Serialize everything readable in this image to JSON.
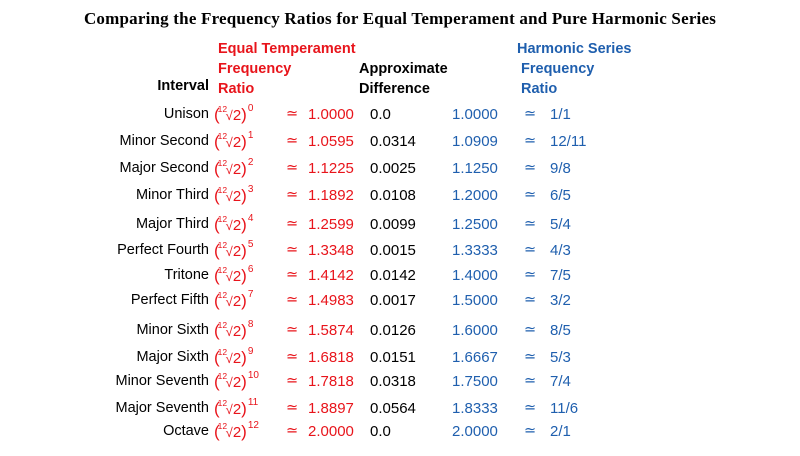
{
  "title": "Comparing the Frequency Ratios for Equal Temperament and Pure Harmonic Series",
  "headers": {
    "interval": "Interval",
    "et": [
      "Equal Temperament",
      "Frequency",
      "Ratio"
    ],
    "diff": [
      "Approximate",
      "Difference"
    ],
    "hs": [
      "Harmonic Series",
      "Frequency",
      "Ratio"
    ]
  },
  "root_index": "12",
  "root_base": "2",
  "approx_symbol": "≃",
  "rows": [
    {
      "name": "Unison",
      "exp": "0",
      "et": "1.0000",
      "diff": "0.0",
      "hv": "1.0000",
      "hs": "1/1"
    },
    {
      "name": "Minor Second",
      "exp": "1",
      "et": "1.0595",
      "diff": "0.0314",
      "hv": "1.0909",
      "hs": "12/11"
    },
    {
      "name": "Major Second",
      "exp": "2",
      "et": "1.1225",
      "diff": "0.0025",
      "hv": "1.1250",
      "hs": "9/8"
    },
    {
      "name": "Minor Third",
      "exp": "3",
      "et": "1.1892",
      "diff": "0.0108",
      "hv": "1.2000",
      "hs": "6/5"
    },
    {
      "name": "Major Third",
      "exp": "4",
      "et": "1.2599",
      "diff": "0.0099",
      "hv": "1.2500",
      "hs": "5/4"
    },
    {
      "name": "Perfect Fourth",
      "exp": "5",
      "et": "1.3348",
      "diff": "0.0015",
      "hv": "1.3333",
      "hs": "4/3"
    },
    {
      "name": "Tritone",
      "exp": "6",
      "et": "1.4142",
      "diff": "0.0142",
      "hv": "1.4000",
      "hs": "7/5"
    },
    {
      "name": "Perfect Fifth",
      "exp": "7",
      "et": "1.4983",
      "diff": "0.0017",
      "hv": "1.5000",
      "hs": "3/2"
    },
    {
      "name": "Minor Sixth",
      "exp": "8",
      "et": "1.5874",
      "diff": "0.0126",
      "hv": "1.6000",
      "hs": "8/5"
    },
    {
      "name": "Major Sixth",
      "exp": "9",
      "et": "1.6818",
      "diff": "0.0151",
      "hv": "1.6667",
      "hs": "5/3"
    },
    {
      "name": "Minor Seventh",
      "exp": "10",
      "et": "1.7818",
      "diff": "0.0318",
      "hv": "1.7500",
      "hs": "7/4"
    },
    {
      "name": "Major Seventh",
      "exp": "11",
      "et": "1.8897",
      "diff": "0.0564",
      "hv": "1.8333",
      "hs": "11/6"
    },
    {
      "name": "Octave",
      "exp": "12",
      "et": "2.0000",
      "diff": "0.0",
      "hv": "2.0000",
      "hs": "2/1"
    }
  ]
}
